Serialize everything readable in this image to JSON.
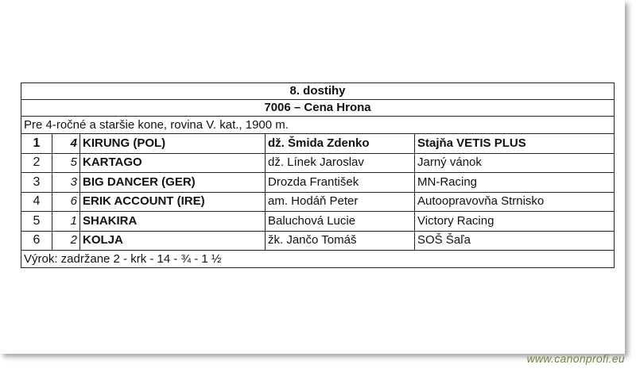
{
  "race": {
    "title": "8. dostihy",
    "subtitle": "7006 – Cena Hrona",
    "description": "Pre 4-ročné a staršie kone, rovina V. kat., 1900 m.",
    "results": [
      {
        "place": "1",
        "number": "4",
        "horse": "KIRUNG (POL)",
        "jockey": "dž. Šmida Zdenko",
        "owner": "Stajňa VETIS PLUS"
      },
      {
        "place": "2",
        "number": "5",
        "horse": "KARTAGO",
        "jockey": "dž. Línek Jaroslav",
        "owner": "Jarný vánok"
      },
      {
        "place": "3",
        "number": "3",
        "horse": "BIG DANCER (GER)",
        "jockey": "Drozda František",
        "owner": "MN-Racing"
      },
      {
        "place": "4",
        "number": "6",
        "horse": "ERIK ACCOUNT (IRE)",
        "jockey": "am. Hodáň Peter",
        "owner": "Autoopravovňa Strnisko"
      },
      {
        "place": "5",
        "number": "1",
        "horse": "SHAKIRA",
        "jockey": "Baluchová Lucie",
        "owner": "Victory Racing"
      },
      {
        "place": "6",
        "number": "2",
        "horse": "KOLJA",
        "jockey": "žk. Jančo Tomáš",
        "owner": "SOŠ Šaľa"
      }
    ],
    "verdict": "Výrok: zadržane 2 - krk - 14 - ¾ - 1 ½"
  },
  "watermark": "www.canonprofi.eu"
}
